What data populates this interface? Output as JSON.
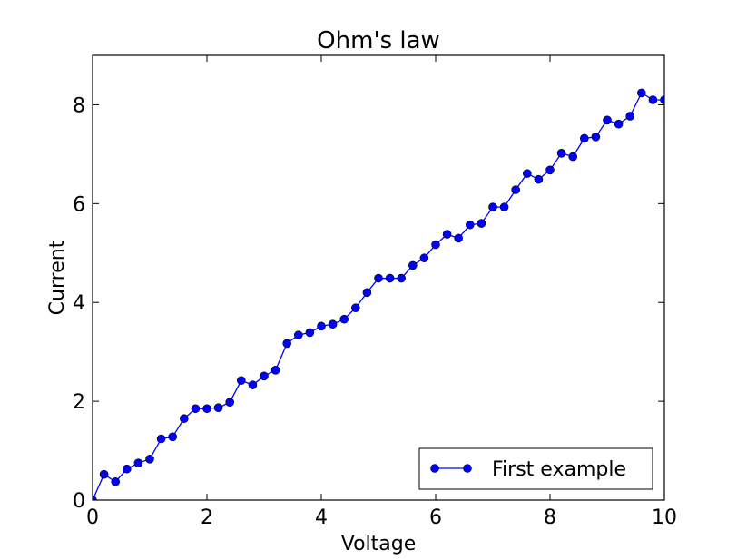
{
  "chart_data": {
    "type": "line",
    "title": "Ohm's law",
    "xlabel": "Voltage",
    "ylabel": "Current",
    "xlim": [
      0,
      10
    ],
    "ylim": [
      0,
      9
    ],
    "xticks": [
      "0",
      "2",
      "4",
      "6",
      "8",
      "10"
    ],
    "yticks": [
      "0",
      "2",
      "4",
      "6",
      "8"
    ],
    "grid": false,
    "legend_placement": "lower-right",
    "series": [
      {
        "name": "First example",
        "color": "#0000ff",
        "marker": "circle",
        "x": [
          0.0,
          0.2,
          0.4,
          0.6,
          0.8,
          1.0,
          1.2,
          1.4,
          1.6,
          1.8,
          2.0,
          2.2,
          2.4,
          2.6,
          2.8,
          3.0,
          3.2,
          3.4,
          3.6,
          3.8,
          4.0,
          4.2,
          4.4,
          4.6,
          4.8,
          5.0,
          5.2,
          5.4,
          5.6,
          5.8,
          6.0,
          6.2,
          6.4,
          6.6,
          6.8,
          7.0,
          7.2,
          7.4,
          7.6,
          7.8,
          8.0,
          8.2,
          8.4,
          8.6,
          8.8,
          9.0,
          9.2,
          9.4,
          9.6,
          9.8,
          10.0
        ],
        "y": [
          0.0,
          0.52,
          0.37,
          0.63,
          0.75,
          0.83,
          1.24,
          1.28,
          1.65,
          1.85,
          1.85,
          1.87,
          1.98,
          2.42,
          2.33,
          2.51,
          2.63,
          3.17,
          3.34,
          3.39,
          3.52,
          3.56,
          3.66,
          3.89,
          4.2,
          4.49,
          4.49,
          4.49,
          4.75,
          4.9,
          5.17,
          5.38,
          5.3,
          5.57,
          5.6,
          5.93,
          5.93,
          6.28,
          6.61,
          6.49,
          6.68,
          7.02,
          6.95,
          7.32,
          7.35,
          7.69,
          7.61,
          7.77,
          8.24,
          8.1,
          8.1
        ]
      }
    ]
  }
}
